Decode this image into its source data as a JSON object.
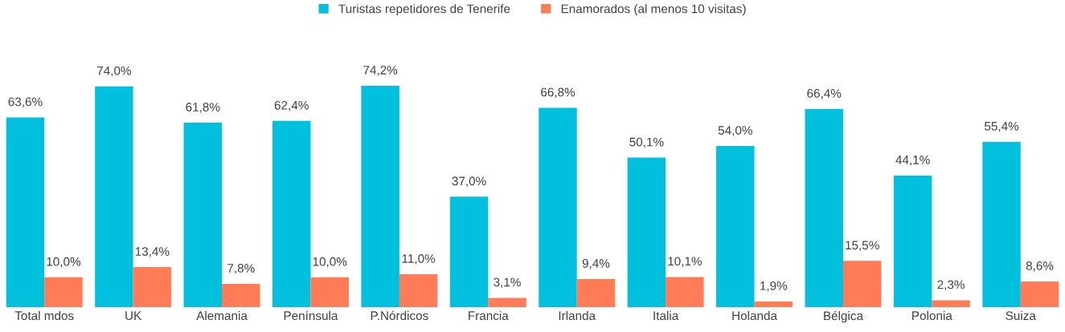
{
  "chart_data": {
    "type": "bar",
    "categories": [
      "Total mdos",
      "UK",
      "Alemania",
      "Península",
      "P.Nórdicos",
      "Francia",
      "Irlanda",
      "Italia",
      "Holanda",
      "Bélgica",
      "Polonia",
      "Suiza"
    ],
    "series": [
      {
        "name": "Turistas repetidores de Tenerife",
        "color": "#00c0de",
        "values": [
          63.6,
          74.0,
          61.8,
          62.4,
          74.2,
          37.0,
          66.8,
          50.1,
          54.0,
          66.4,
          44.1,
          55.4
        ],
        "value_labels": [
          "63,6%",
          "74,0%",
          "61,8%",
          "62,4%",
          "74,2%",
          "37,0%",
          "66,8%",
          "50,1%",
          "54,0%",
          "66,4%",
          "44,1%",
          "55,4%"
        ]
      },
      {
        "name": "Enamorados (al menos 10 visitas)",
        "color": "#ff7c56",
        "values": [
          10.0,
          13.4,
          7.8,
          10.0,
          11.0,
          3.1,
          9.4,
          10.1,
          1.9,
          15.5,
          2.3,
          8.6
        ],
        "value_labels": [
          "10,0%",
          "13,4%",
          "7,8%",
          "10,0%",
          "11,0%",
          "3,1%",
          "9,4%",
          "10,1%",
          "1,9%",
          "15,5%",
          "2,3%",
          "8,6%"
        ]
      }
    ],
    "tick_labels": "x",
    "grid": false,
    "legend": "top"
  }
}
